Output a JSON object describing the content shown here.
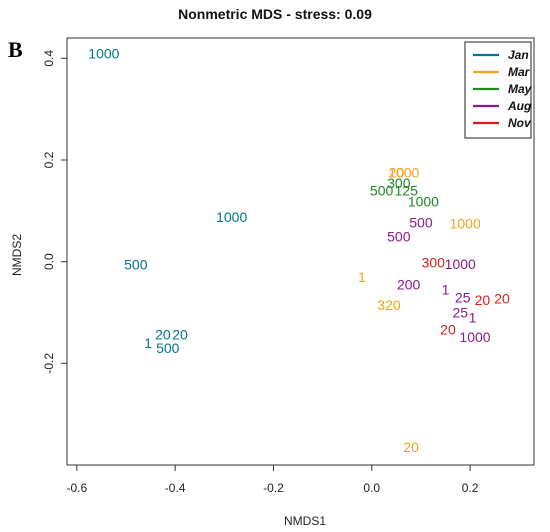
{
  "chart_data": {
    "type": "scatter",
    "title": "Nonmetric MDS - stress: 0.09",
    "panel_label": "B",
    "xlabel": "NMDS1",
    "ylabel": "NMDS2",
    "xlim": [
      -0.62,
      0.33
    ],
    "ylim": [
      -0.4,
      0.44
    ],
    "xticks": [
      -0.6,
      -0.4,
      -0.2,
      0.0,
      0.2
    ],
    "xtick_labels": [
      "-0.6",
      "-0.4",
      "-0.2",
      "0.0",
      "0.2"
    ],
    "yticks": [
      -0.2,
      0.0,
      0.2,
      0.4
    ],
    "ytick_labels": [
      "-0.2",
      "0.0",
      "0.2",
      "0.4"
    ],
    "grid": false,
    "legend_position": "top-right",
    "series": [
      {
        "name": "Jan",
        "color": "#00768a",
        "points": [
          {
            "x": -0.545,
            "y": 0.41,
            "label": "1000"
          },
          {
            "x": -0.285,
            "y": 0.088,
            "label": "1000"
          },
          {
            "x": -0.48,
            "y": -0.006,
            "label": "500"
          },
          {
            "x": -0.425,
            "y": -0.143,
            "label": "20"
          },
          {
            "x": -0.39,
            "y": -0.143,
            "label": "20"
          },
          {
            "x": -0.455,
            "y": -0.16,
            "label": "1"
          },
          {
            "x": -0.415,
            "y": -0.17,
            "label": "500"
          }
        ]
      },
      {
        "name": "Mar",
        "color": "#f2a21c",
        "points": [
          {
            "x": 0.065,
            "y": 0.175,
            "label": "1000"
          },
          {
            "x": 0.05,
            "y": 0.175,
            "label": "20"
          },
          {
            "x": 0.19,
            "y": 0.075,
            "label": "1000"
          },
          {
            "x": -0.02,
            "y": -0.03,
            "label": "1"
          },
          {
            "x": 0.035,
            "y": -0.085,
            "label": "320"
          },
          {
            "x": 0.08,
            "y": -0.365,
            "label": "20"
          }
        ]
      },
      {
        "name": "May",
        "color": "#1d8a1d",
        "points": [
          {
            "x": 0.055,
            "y": 0.155,
            "label": "300"
          },
          {
            "x": 0.02,
            "y": 0.14,
            "label": "500"
          },
          {
            "x": 0.07,
            "y": 0.14,
            "label": "125"
          },
          {
            "x": 0.105,
            "y": 0.118,
            "label": "1000"
          }
        ]
      },
      {
        "name": "Aug",
        "color": "#8b1a8b",
        "points": [
          {
            "x": 0.1,
            "y": 0.077,
            "label": "500"
          },
          {
            "x": 0.055,
            "y": 0.05,
            "label": "500"
          },
          {
            "x": 0.18,
            "y": -0.005,
            "label": "1000"
          },
          {
            "x": 0.075,
            "y": -0.045,
            "label": "200"
          },
          {
            "x": 0.15,
            "y": -0.055,
            "label": "1"
          },
          {
            "x": 0.185,
            "y": -0.07,
            "label": "25"
          },
          {
            "x": 0.18,
            "y": -0.1,
            "label": "25"
          },
          {
            "x": 0.205,
            "y": -0.11,
            "label": "1"
          },
          {
            "x": 0.21,
            "y": -0.148,
            "label": "1000"
          }
        ]
      },
      {
        "name": "Nov",
        "color": "#d91c1c",
        "points": [
          {
            "x": 0.125,
            "y": -0.002,
            "label": "300"
          },
          {
            "x": 0.225,
            "y": -0.075,
            "label": "20"
          },
          {
            "x": 0.265,
            "y": -0.072,
            "label": "20"
          },
          {
            "x": 0.155,
            "y": -0.133,
            "label": "20"
          }
        ]
      }
    ]
  }
}
